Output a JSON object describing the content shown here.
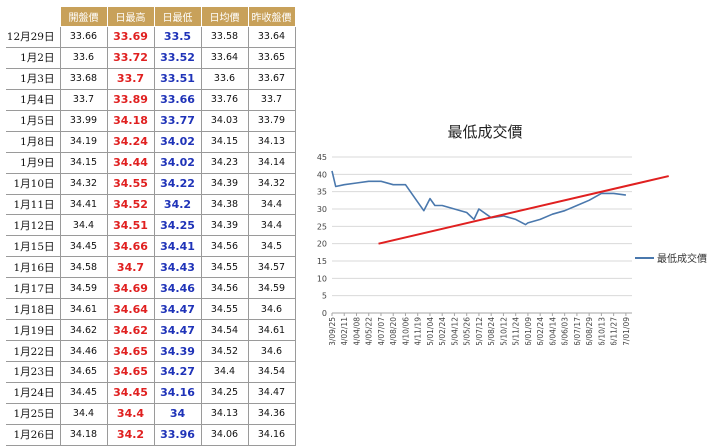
{
  "table": {
    "headers": [
      "開盤價",
      "日最高",
      "日最低",
      "日均價",
      "昨收盤價"
    ],
    "rows": [
      {
        "date": "12月29日",
        "open": "33.66",
        "high": "33.69",
        "low": "33.5",
        "avg": "33.58",
        "prev": "33.64"
      },
      {
        "date": "1月2日",
        "open": "33.6",
        "high": "33.72",
        "low": "33.52",
        "avg": "33.64",
        "prev": "33.65"
      },
      {
        "date": "1月3日",
        "open": "33.68",
        "high": "33.7",
        "low": "33.51",
        "avg": "33.6",
        "prev": "33.67"
      },
      {
        "date": "1月4日",
        "open": "33.7",
        "high": "33.89",
        "low": "33.66",
        "avg": "33.76",
        "prev": "33.7"
      },
      {
        "date": "1月5日",
        "open": "33.99",
        "high": "34.18",
        "low": "33.77",
        "avg": "34.03",
        "prev": "33.79"
      },
      {
        "date": "1月8日",
        "open": "34.19",
        "high": "34.24",
        "low": "34.02",
        "avg": "34.15",
        "prev": "34.13"
      },
      {
        "date": "1月9日",
        "open": "34.15",
        "high": "34.44",
        "low": "34.02",
        "avg": "34.23",
        "prev": "34.14"
      },
      {
        "date": "1月10日",
        "open": "34.32",
        "high": "34.55",
        "low": "34.22",
        "avg": "34.39",
        "prev": "34.32"
      },
      {
        "date": "1月11日",
        "open": "34.41",
        "high": "34.52",
        "low": "34.2",
        "avg": "34.38",
        "prev": "34.4"
      },
      {
        "date": "1月12日",
        "open": "34.4",
        "high": "34.51",
        "low": "34.25",
        "avg": "34.39",
        "prev": "34.4"
      },
      {
        "date": "1月15日",
        "open": "34.45",
        "high": "34.66",
        "low": "34.41",
        "avg": "34.56",
        "prev": "34.5"
      },
      {
        "date": "1月16日",
        "open": "34.58",
        "high": "34.7",
        "low": "34.43",
        "avg": "34.55",
        "prev": "34.57"
      },
      {
        "date": "1月17日",
        "open": "34.59",
        "high": "34.69",
        "low": "34.46",
        "avg": "34.56",
        "prev": "34.59"
      },
      {
        "date": "1月18日",
        "open": "34.61",
        "high": "34.64",
        "low": "34.47",
        "avg": "34.55",
        "prev": "34.6"
      },
      {
        "date": "1月19日",
        "open": "34.62",
        "high": "34.62",
        "low": "34.47",
        "avg": "34.54",
        "prev": "34.61"
      },
      {
        "date": "1月22日",
        "open": "34.46",
        "high": "34.65",
        "low": "34.39",
        "avg": "34.52",
        "prev": "34.6"
      },
      {
        "date": "1月23日",
        "open": "34.65",
        "high": "34.65",
        "low": "34.27",
        "avg": "34.4",
        "prev": "34.54"
      },
      {
        "date": "1月24日",
        "open": "34.45",
        "high": "34.45",
        "low": "34.16",
        "avg": "34.25",
        "prev": "34.47"
      },
      {
        "date": "1月25日",
        "open": "34.4",
        "high": "34.4",
        "low": "34",
        "avg": "34.13",
        "prev": "34.36"
      },
      {
        "date": "1月26日",
        "open": "34.18",
        "high": "34.2",
        "low": "33.96",
        "avg": "34.06",
        "prev": "34.16"
      }
    ]
  },
  "colors": {
    "header_bg": "#c8a15a",
    "high": "#e02020",
    "low": "#1f33b8",
    "line": "#4a78ad",
    "trend": "#e02020"
  },
  "chart_data": {
    "type": "line",
    "title": "最低成交價",
    "xlabel": "",
    "ylabel": "",
    "ylim": [
      0,
      45
    ],
    "yticks": [
      0,
      5,
      10,
      15,
      20,
      25,
      30,
      35,
      40,
      45
    ],
    "x_tick_labels": [
      "103/09/25",
      "104/02/11",
      "104/04/08",
      "104/05/22",
      "104/07/07",
      "104/08/20",
      "104/10/06",
      "104/11/19",
      "105/01/04",
      "105/02/24",
      "105/04/12",
      "105/05/26",
      "105/07/12",
      "105/08/24",
      "105/10/12",
      "105/11/24",
      "106/01/09",
      "106/02/24",
      "106/04/14",
      "106/06/03",
      "106/07/17",
      "106/08/29",
      "106/10/13",
      "106/11/27",
      "107/01/09"
    ],
    "legend": "right",
    "series": [
      {
        "name": "最低成交價",
        "x": [
          0,
          0.3,
          1,
          2,
          3,
          4,
          5,
          6,
          7,
          7.5,
          8,
          8.4,
          9,
          10,
          11,
          11.6,
          12,
          13,
          14,
          15,
          15.8,
          16,
          17,
          18,
          19,
          20,
          21,
          22,
          23,
          24
        ],
        "values": [
          41,
          36.5,
          37,
          37.5,
          38,
          38,
          37,
          37,
          32,
          29.5,
          33,
          31,
          31,
          30,
          29,
          27,
          30,
          27.5,
          28,
          27,
          25.5,
          26,
          27,
          28.5,
          29.5,
          31,
          32.5,
          34.5,
          34.5,
          34
        ]
      }
    ],
    "trendline": {
      "x": [
        3.8,
        27.5
      ],
      "values": [
        20,
        39.5
      ]
    }
  }
}
